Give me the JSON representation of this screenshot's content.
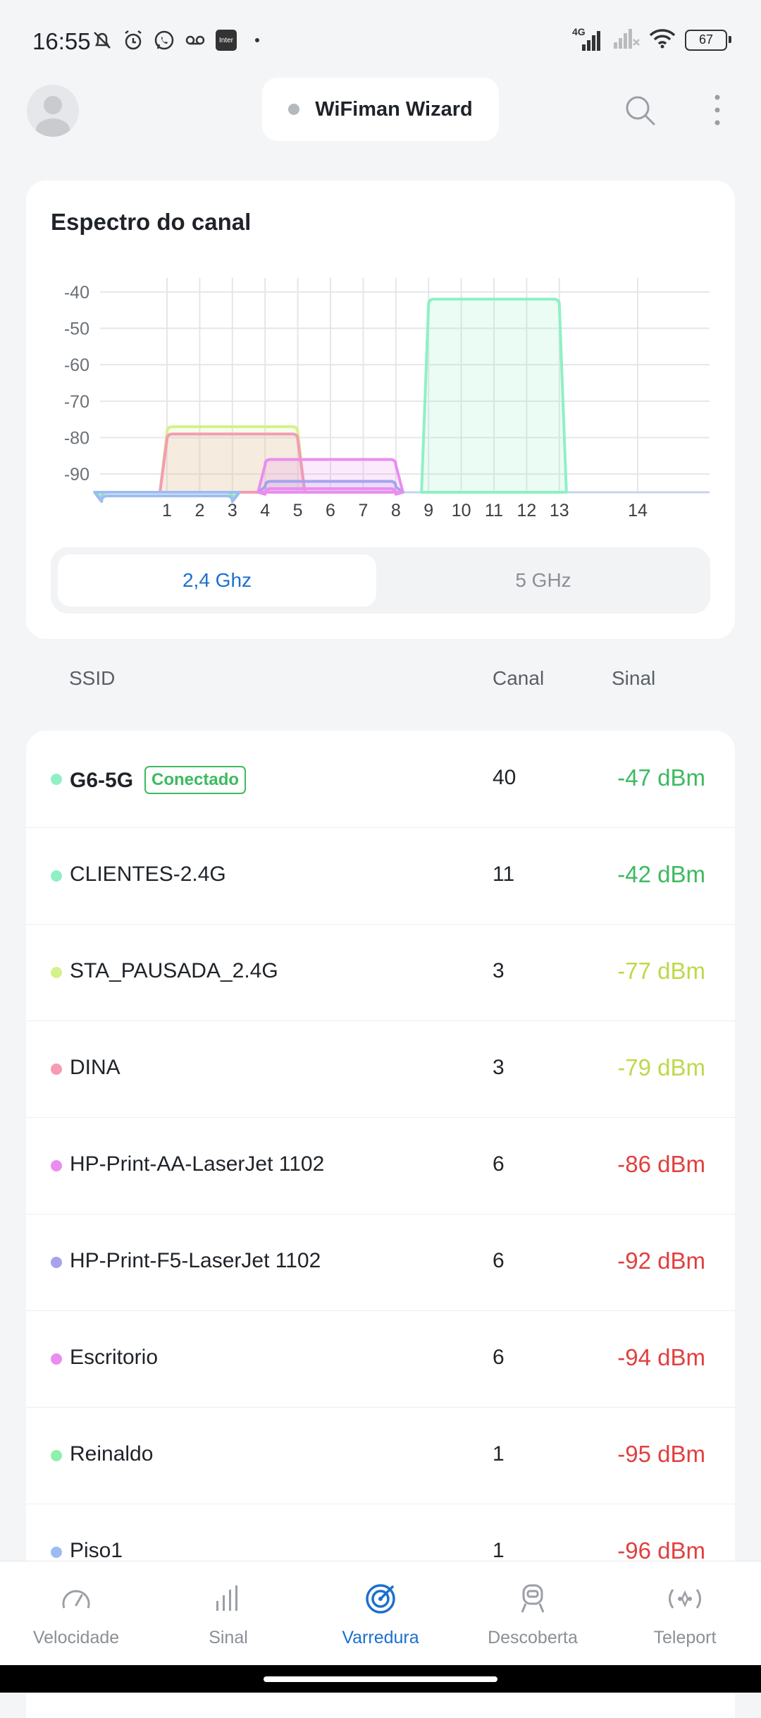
{
  "status": {
    "time": "16:55",
    "network": "4G",
    "battery": "67",
    "inter": "Inter"
  },
  "header": {
    "title": "WiFiman Wizard"
  },
  "spectrum": {
    "title": "Espectro do canal",
    "bands": {
      "active": "2,4 Ghz",
      "inactive": "5 GHz"
    }
  },
  "chart_data": {
    "type": "area",
    "y_ticks": [
      "-40",
      "-50",
      "-60",
      "-70",
      "-80",
      "-90"
    ],
    "x_ticks": [
      "1",
      "2",
      "3",
      "4",
      "5",
      "6",
      "7",
      "8",
      "9",
      "10",
      "11",
      "12",
      "13",
      "14"
    ],
    "x_tick_values": [
      1,
      2,
      3,
      4,
      5,
      6,
      7,
      8,
      9,
      10,
      11,
      12,
      13,
      14
    ],
    "ylim": [
      -95,
      -35
    ],
    "grid": true,
    "series": [
      {
        "channel": 11,
        "signal": -42,
        "color": "#8ff0c4"
      },
      {
        "channel": 3,
        "signal": -77,
        "color": "#d3f28b"
      },
      {
        "channel": 3,
        "signal": -79,
        "color": "#f59bb4"
      },
      {
        "channel": 6,
        "signal": -86,
        "color": "#ea8df0"
      },
      {
        "channel": 6,
        "signal": -92,
        "color": "#a7a2ef"
      },
      {
        "channel": 6,
        "signal": -94,
        "color": "#ea8df0"
      },
      {
        "channel": 1,
        "signal": -95,
        "color": "#8ff0ae"
      },
      {
        "channel": 1,
        "signal": -96,
        "color": "#9dbcf2"
      }
    ]
  },
  "list": {
    "headers": {
      "ssid": "SSID",
      "channel": "Canal",
      "signal": "Sinal"
    },
    "rows": [
      {
        "ssid": "G6-5G",
        "badge": "Conectado",
        "channel": "40",
        "signal": "-47 dBm",
        "dot": "#8ff0c4",
        "sig_color": "#3dba5f"
      },
      {
        "ssid": "CLIENTES-2.4G",
        "channel": "11",
        "signal": "-42 dBm",
        "dot": "#8ff0c4",
        "sig_color": "#3dba5f"
      },
      {
        "ssid": "STA_PAUSADA_2.4G",
        "channel": "3",
        "signal": "-77 dBm",
        "dot": "#d3f28b",
        "sig_color": "#bcd94a"
      },
      {
        "ssid": "DINA",
        "channel": "3",
        "signal": "-79 dBm",
        "dot": "#f59bb4",
        "sig_color": "#bcd94a"
      },
      {
        "ssid": "HP-Print-AA-LaserJet 1102",
        "channel": "6",
        "signal": "-86 dBm",
        "dot": "#ea8df0",
        "sig_color": "#e0403f"
      },
      {
        "ssid": "HP-Print-F5-LaserJet 1102",
        "channel": "6",
        "signal": "-92 dBm",
        "dot": "#a7a2ef",
        "sig_color": "#e0403f"
      },
      {
        "ssid": "Escritorio",
        "channel": "6",
        "signal": "-94 dBm",
        "dot": "#ea8df0",
        "sig_color": "#e0403f"
      },
      {
        "ssid": "Reinaldo",
        "channel": "1",
        "signal": "-95 dBm",
        "dot": "#8ff0ae",
        "sig_color": "#e0403f"
      },
      {
        "ssid": "Piso1",
        "channel": "1",
        "signal": "-96 dBm",
        "dot": "#9dbcf2",
        "sig_color": "#e0403f"
      }
    ]
  },
  "nav": {
    "items": [
      {
        "label": "Velocidade",
        "icon": "speedometer-icon"
      },
      {
        "label": "Sinal",
        "icon": "signal-bars-icon"
      },
      {
        "label": "Varredura",
        "icon": "radar-icon",
        "active": true
      },
      {
        "label": "Descoberta",
        "icon": "discovery-icon"
      },
      {
        "label": "Teleport",
        "icon": "teleport-icon"
      }
    ]
  }
}
